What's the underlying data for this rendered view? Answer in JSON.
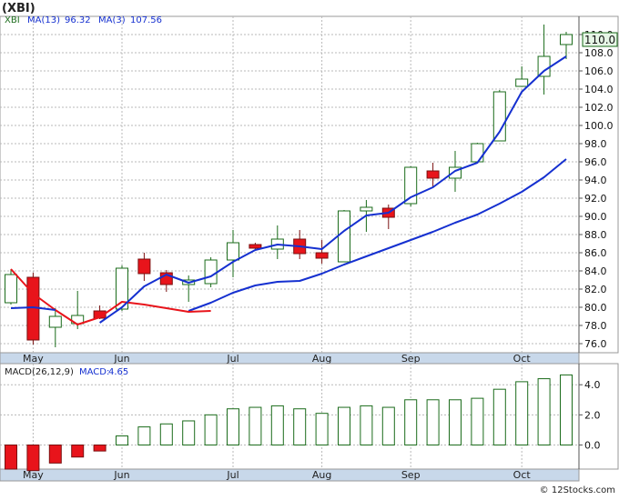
{
  "title": "(XBI)",
  "colors": {
    "up_fill": "#ffffff",
    "up_stroke": "#1a6b1a",
    "down_fill": "#e8141b",
    "down_stroke": "#7a1010",
    "ma13": "#1530d0",
    "ma3_red": "#e8141b",
    "grid": "#b8b8b8",
    "axis_band": "#c8d8ea",
    "price_box": "#e6f6e6",
    "macd_bar": "#1a6b1a",
    "macd_neg_fill": "#e8141b"
  },
  "price_panel": {
    "legend": {
      "symbol": "XBI",
      "ma13_label": "MA(13)",
      "ma13_value": "96.32",
      "ma3_label": "MA(3)",
      "ma3_value": "107.56"
    },
    "last_price_label": "110.0"
  },
  "macd_panel": {
    "legend": {
      "label": "MACD(26,12,9)",
      "macd_label": "MACD:",
      "macd_value": "4.65"
    }
  },
  "footer": {
    "credit": "© 12Stocks.com"
  },
  "chart_data": [
    {
      "type": "candlestick",
      "title": "(XBI)",
      "ylim": [
        75,
        112
      ],
      "yticks": [
        76,
        78,
        80,
        82,
        84,
        86,
        88,
        90,
        92,
        94,
        96,
        98,
        100,
        102,
        104,
        106,
        108,
        110
      ],
      "ytick_labels": [
        "76.0",
        "78.0",
        "80.0",
        "82.0",
        "84.0",
        "86.0",
        "88.0",
        "90.0",
        "92.0",
        "94.0",
        "96.0",
        "98.0",
        "100.0",
        "102.0",
        "104.0",
        "106.0",
        "108.0",
        "110.0"
      ],
      "xtick_labels": [
        "May",
        "Jun",
        "Jul",
        "Aug",
        "Sep",
        "Oct"
      ],
      "xtick_index": [
        1,
        5,
        10,
        14,
        18,
        23
      ],
      "grid": true,
      "candles": [
        {
          "o": 80.5,
          "h": 84.2,
          "l": 80.3,
          "c": 83.6
        },
        {
          "o": 83.3,
          "h": 83.8,
          "l": 75.9,
          "c": 76.4
        },
        {
          "o": 77.8,
          "h": 79.9,
          "l": 75.6,
          "c": 79.0
        },
        {
          "o": 78.2,
          "h": 81.8,
          "l": 77.6,
          "c": 79.1
        },
        {
          "o": 79.6,
          "h": 80.2,
          "l": 78.7,
          "c": 78.8
        },
        {
          "o": 79.8,
          "h": 84.6,
          "l": 79.6,
          "c": 84.3
        },
        {
          "o": 85.3,
          "h": 86.0,
          "l": 82.9,
          "c": 83.7
        },
        {
          "o": 83.8,
          "h": 84.1,
          "l": 81.7,
          "c": 82.5
        },
        {
          "o": 82.5,
          "h": 83.5,
          "l": 80.6,
          "c": 83.0
        },
        {
          "o": 82.6,
          "h": 85.5,
          "l": 82.2,
          "c": 85.2
        },
        {
          "o": 85.2,
          "h": 88.5,
          "l": 83.3,
          "c": 87.1
        },
        {
          "o": 86.9,
          "h": 87.1,
          "l": 86.4,
          "c": 86.5
        },
        {
          "o": 86.4,
          "h": 89.0,
          "l": 85.3,
          "c": 87.5
        },
        {
          "o": 87.5,
          "h": 88.5,
          "l": 85.3,
          "c": 85.9
        },
        {
          "o": 86.0,
          "h": 87.4,
          "l": 84.8,
          "c": 85.4
        },
        {
          "o": 85.0,
          "h": 90.7,
          "l": 85.0,
          "c": 90.6
        },
        {
          "o": 90.6,
          "h": 91.8,
          "l": 88.3,
          "c": 91.0
        },
        {
          "o": 90.9,
          "h": 91.3,
          "l": 88.6,
          "c": 89.9
        },
        {
          "o": 91.4,
          "h": 95.5,
          "l": 91.1,
          "c": 95.4
        },
        {
          "o": 95.0,
          "h": 95.9,
          "l": 93.2,
          "c": 94.2
        },
        {
          "o": 94.2,
          "h": 97.2,
          "l": 92.7,
          "c": 95.4
        },
        {
          "o": 96.0,
          "h": 98.1,
          "l": 95.9,
          "c": 98.0
        },
        {
          "o": 98.3,
          "h": 103.9,
          "l": 98.3,
          "c": 103.7
        },
        {
          "o": 104.3,
          "h": 106.5,
          "l": 104.3,
          "c": 105.1
        },
        {
          "o": 105.4,
          "h": 111.1,
          "l": 103.4,
          "c": 107.6
        },
        {
          "o": 108.9,
          "h": 110.3,
          "l": 107.3,
          "c": 110.0
        }
      ],
      "series": [
        {
          "name": "MA(13)",
          "color": "#1530d0",
          "start_index": 8,
          "values": [
            79.6,
            80.5,
            81.6,
            82.4,
            82.8,
            82.9,
            83.7,
            84.7,
            85.6,
            86.5,
            87.4,
            88.3,
            89.3,
            90.2,
            91.4,
            92.7,
            94.3,
            96.3
          ]
        },
        {
          "name": "MA(3)",
          "color": "#e8141b",
          "start_index": 0,
          "values": [
            84.2,
            81.5,
            79.7,
            78.1,
            78.9,
            80.6,
            80.3,
            79.9,
            79.5,
            79.6
          ]
        },
        {
          "name": "MA(3)",
          "color": "#1530d0",
          "start_index": 0,
          "label_index": 1,
          "values": [
            79.9,
            80.0,
            79.7
          ]
        },
        {
          "name": "MA(3)",
          "color": "#1530d0",
          "start_index": 4,
          "values": [
            78.3,
            80.0,
            82.3,
            83.6,
            82.7,
            83.4,
            85.0,
            86.3,
            86.9,
            86.7,
            86.4,
            88.4,
            90.1,
            90.4,
            92.1,
            93.2,
            95.0,
            95.9,
            99.3,
            103.7,
            106.0,
            107.6
          ]
        }
      ]
    },
    {
      "type": "bar",
      "title": "MACD(26,12,9)",
      "ylim": [
        -1.6,
        5.4
      ],
      "yticks": [
        0,
        2,
        4
      ],
      "ytick_labels": [
        "0.0",
        "2.0",
        "4.0"
      ],
      "xtick_labels": [
        "May",
        "Jun",
        "Jul",
        "Aug",
        "Sep",
        "Oct"
      ],
      "xtick_index": [
        1,
        5,
        10,
        14,
        18,
        23
      ],
      "grid": true,
      "values": [
        -1.6,
        -1.7,
        -1.2,
        -0.8,
        -0.4,
        0.6,
        1.2,
        1.4,
        1.6,
        2.0,
        2.4,
        2.5,
        2.6,
        2.4,
        2.1,
        2.5,
        2.6,
        2.5,
        3.0,
        3.0,
        3.0,
        3.1,
        3.7,
        4.2,
        4.4,
        4.65
      ]
    }
  ]
}
